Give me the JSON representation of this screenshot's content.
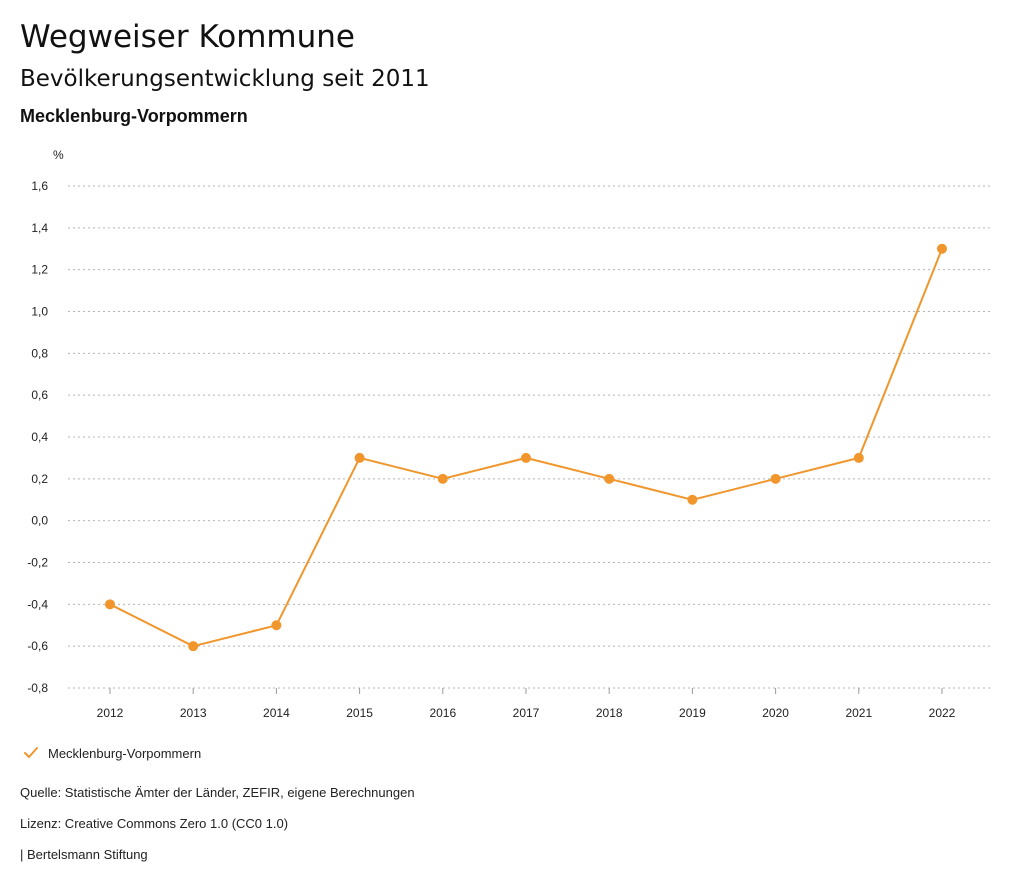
{
  "header": {
    "title": "Wegweiser Kommune",
    "subtitle": "Bevölkerungsentwicklung seit 2011",
    "region": "Mecklenburg-Vorpommern"
  },
  "chart_data": {
    "type": "line",
    "title": "Bevölkerungsentwicklung seit 2011",
    "subtitle": "Mecklenburg-Vorpommern",
    "ylabel": "%",
    "xlabel": "",
    "x": [
      "2012",
      "2013",
      "2014",
      "2015",
      "2016",
      "2017",
      "2018",
      "2019",
      "2020",
      "2021",
      "2022"
    ],
    "series": [
      {
        "name": "Mecklenburg-Vorpommern",
        "color": "#f0962d",
        "values": [
          -0.4,
          -0.6,
          -0.5,
          0.3,
          0.2,
          0.3,
          0.2,
          0.1,
          0.2,
          0.3,
          1.3
        ]
      }
    ],
    "ylim": [
      -0.8,
      1.6
    ],
    "yticks": [
      1.6,
      1.4,
      1.2,
      1.0,
      0.8,
      0.6,
      0.4,
      0.2,
      0.0,
      -0.2,
      -0.4,
      -0.6,
      -0.8
    ],
    "ytick_labels": [
      "1,6",
      "1,4",
      "1,2",
      "1,0",
      "0,8",
      "0,6",
      "0,4",
      "0,2",
      "0,0",
      "-0,2",
      "-0,4",
      "-0,6",
      "-0,8"
    ],
    "grid": "horizontal-dotted",
    "legend": "bottom-left"
  },
  "legend": {
    "label": "Mecklenburg-Vorpommern",
    "icon": "check-icon"
  },
  "footer": {
    "source": "Quelle: Statistische Ämter der Länder, ZEFIR, eigene Berechnungen",
    "license": "Lizenz: Creative Commons Zero 1.0 (CC0 1.0)",
    "publisher": "| Bertelsmann Stiftung"
  },
  "colors": {
    "series": "#f0962d",
    "grid": "#b5b5b5",
    "text": "#222222"
  }
}
